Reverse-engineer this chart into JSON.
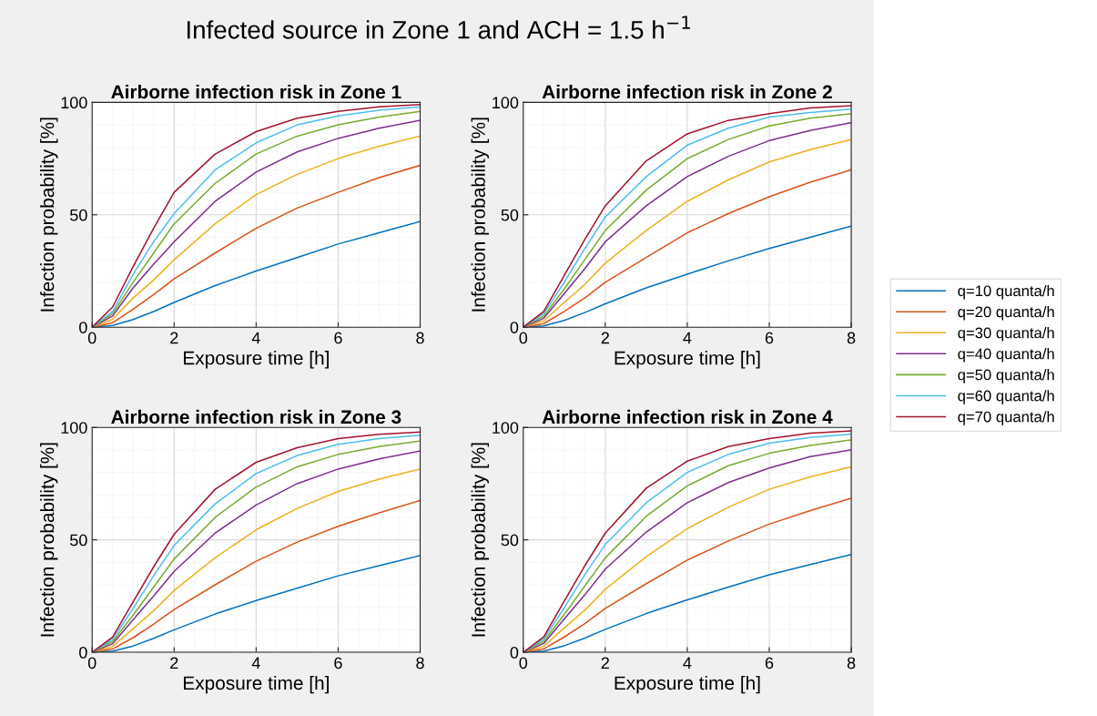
{
  "chart_data": [
    {
      "type": "line",
      "title": "Airborne infection risk in Zone 1",
      "annotations": [
        "Infected source in Zone 1 and ACH = 1.5 h$^{−1}$"
      ],
      "xlabel": "Exposure time [h]",
      "ylabel": "Infection probability [%]",
      "xlim": [
        0,
        8
      ],
      "ylim": [
        0,
        100
      ],
      "xticks": [
        0,
        2,
        4,
        6,
        8
      ],
      "yticks": [
        0,
        50,
        100
      ],
      "grid": true,
      "legend": "right",
      "marker": "none",
      "line_style": "solid",
      "x": [
        0,
        0.5,
        1,
        1.5,
        2,
        3,
        4,
        5,
        6,
        7,
        8
      ],
      "series": [
        {
          "name": "q=10 quanta/h",
          "color": "#0072bd",
          "values": [
            0,
            0.8,
            3.4,
            7,
            11,
            18.5,
            25,
            31,
            37,
            42,
            47
          ]
        },
        {
          "name": "q=20 quanta/h",
          "color": "#d95319",
          "values": [
            0,
            2,
            8,
            14.5,
            21.5,
            33,
            44,
            53,
            60,
            66.5,
            72
          ]
        },
        {
          "name": "q=30 quanta/h",
          "color": "#edb120",
          "values": [
            0,
            3.5,
            13,
            21,
            30,
            46,
            59,
            68,
            75,
            80.5,
            85
          ]
        },
        {
          "name": "q=40 quanta/h",
          "color": "#7e2f8e",
          "values": [
            0,
            5,
            17.5,
            28,
            38,
            56,
            69,
            78,
            84,
            88.5,
            92
          ]
        },
        {
          "name": "q=50 quanta/h",
          "color": "#77ac30",
          "values": [
            0,
            6,
            20,
            33,
            46,
            64,
            77,
            85,
            90,
            93.5,
            96
          ]
        },
        {
          "name": "q=60 quanta/h",
          "color": "#4dbeee",
          "values": [
            0,
            7,
            23.5,
            38,
            50.5,
            70,
            82,
            90,
            94,
            96.5,
            98
          ]
        },
        {
          "name": "q=70 quanta/h",
          "color": "#a2142f",
          "values": [
            0,
            9,
            27,
            44,
            60,
            77,
            87,
            93,
            96,
            98,
            99
          ]
        }
      ]
    },
    {
      "type": "line",
      "title": "Airborne infection risk in Zone 2",
      "xlabel": "Exposure time [h]",
      "ylabel": "Infection probability [%]",
      "xlim": [
        0,
        8
      ],
      "ylim": [
        0,
        100
      ],
      "xticks": [
        0,
        2,
        4,
        6,
        8
      ],
      "yticks": [
        0,
        50,
        100
      ],
      "grid": true,
      "marker": "none",
      "line_style": "solid",
      "x": [
        0,
        0.5,
        1,
        1.5,
        2,
        3,
        4,
        5,
        6,
        7,
        8
      ],
      "series": [
        {
          "color": "#0072bd",
          "values": [
            0,
            0.6,
            3,
            6.5,
            10.4,
            17.5,
            23.6,
            29.5,
            35,
            40,
            45
          ]
        },
        {
          "color": "#d95319",
          "values": [
            0,
            1.6,
            7,
            13,
            20,
            31,
            42,
            50.5,
            58,
            64.5,
            70
          ]
        },
        {
          "color": "#edb120",
          "values": [
            0,
            2.8,
            11,
            19,
            28.5,
            43,
            56,
            65.5,
            73.5,
            79,
            83.5
          ]
        },
        {
          "color": "#7e2f8e",
          "values": [
            0,
            4,
            15,
            26,
            38,
            54,
            67,
            76,
            83,
            87.5,
            91
          ]
        },
        {
          "color": "#77ac30",
          "values": [
            0,
            5,
            17,
            30,
            43,
            61,
            75,
            83.5,
            89.5,
            93,
            95
          ]
        },
        {
          "color": "#4dbeee",
          "values": [
            0,
            6,
            20,
            35,
            49,
            67,
            81,
            88.5,
            93.5,
            95.5,
            97
          ]
        },
        {
          "color": "#a2142f",
          "values": [
            0,
            7,
            23,
            39,
            54,
            74,
            86,
            92,
            95,
            97.5,
            98.5
          ]
        }
      ]
    },
    {
      "type": "line",
      "title": "Airborne infection risk in Zone 3",
      "xlabel": "Exposure time [h]",
      "ylabel": "Infection probability [%]",
      "xlim": [
        0,
        8
      ],
      "ylim": [
        0,
        100
      ],
      "xticks": [
        0,
        2,
        4,
        6,
        8
      ],
      "yticks": [
        0,
        50,
        100
      ],
      "grid": true,
      "marker": "none",
      "line_style": "solid",
      "x": [
        0,
        0.5,
        1,
        1.5,
        2,
        3,
        4,
        5,
        6,
        7,
        8
      ],
      "series": [
        {
          "color": "#0072bd",
          "values": [
            0,
            0.5,
            2.8,
            6.2,
            10,
            17,
            23,
            28.5,
            34,
            38.5,
            43
          ]
        },
        {
          "color": "#d95319",
          "values": [
            0,
            1.5,
            6.5,
            12.5,
            19,
            30,
            40.5,
            49,
            56,
            62,
            67.5
          ]
        },
        {
          "color": "#edb120",
          "values": [
            0,
            2.6,
            10.5,
            18.5,
            27.5,
            42,
            54.5,
            64,
            71.5,
            77,
            81.5
          ]
        },
        {
          "color": "#7e2f8e",
          "values": [
            0,
            3.8,
            14.5,
            25,
            36,
            53,
            65.5,
            75,
            81.5,
            86,
            89.5
          ]
        },
        {
          "color": "#77ac30",
          "values": [
            0,
            4.8,
            16.5,
            29,
            41.5,
            60,
            73.5,
            82.5,
            88,
            91.5,
            94
          ]
        },
        {
          "color": "#4dbeee",
          "values": [
            0,
            5.8,
            19.5,
            34,
            47.5,
            66,
            79.5,
            87.5,
            92.5,
            95,
            96.5
          ]
        },
        {
          "color": "#a2142f",
          "values": [
            0,
            6.8,
            22.5,
            38,
            52.5,
            72.5,
            84.5,
            91,
            95,
            97,
            98
          ]
        }
      ]
    },
    {
      "type": "line",
      "title": "Airborne infection risk in Zone 4",
      "xlabel": "Exposure time [h]",
      "ylabel": "Infection probability [%]",
      "xlim": [
        0,
        8
      ],
      "ylim": [
        0,
        100
      ],
      "xticks": [
        0,
        2,
        4,
        6,
        8
      ],
      "yticks": [
        0,
        50,
        100
      ],
      "grid": true,
      "marker": "none",
      "line_style": "solid",
      "x": [
        0,
        0.5,
        1,
        1.5,
        2,
        3,
        4,
        5,
        6,
        7,
        8
      ],
      "series": [
        {
          "color": "#0072bd",
          "values": [
            0,
            0.5,
            2.9,
            6.3,
            10.2,
            17.2,
            23.3,
            29,
            34.5,
            39,
            43.5
          ]
        },
        {
          "color": "#d95319",
          "values": [
            0,
            1.5,
            6.8,
            12.7,
            19.5,
            30.5,
            41,
            49.5,
            57,
            63,
            68.5
          ]
        },
        {
          "color": "#edb120",
          "values": [
            0,
            2.7,
            10.8,
            18.7,
            28,
            42.5,
            55,
            64.5,
            72.5,
            78,
            82.5
          ]
        },
        {
          "color": "#7e2f8e",
          "values": [
            0,
            3.9,
            14.8,
            25.5,
            37,
            53.5,
            66.5,
            75.5,
            82,
            87,
            90
          ]
        },
        {
          "color": "#77ac30",
          "values": [
            0,
            4.9,
            16.8,
            29.5,
            42,
            60.5,
            74,
            83,
            88.5,
            92,
            94.5
          ]
        },
        {
          "color": "#4dbeee",
          "values": [
            0,
            5.9,
            19.8,
            34.5,
            48,
            66.5,
            80,
            88,
            93,
            95.5,
            97
          ]
        },
        {
          "color": "#a2142f",
          "values": [
            0,
            6.9,
            22.8,
            38.5,
            53,
            73,
            85,
            91.5,
            95,
            97.5,
            98.5
          ]
        }
      ]
    }
  ]
}
